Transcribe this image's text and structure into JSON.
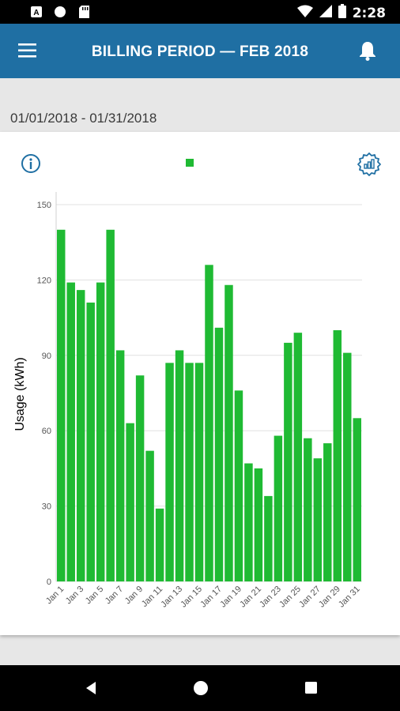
{
  "status_bar": {
    "time": "2:28",
    "icons": [
      "a-notification-icon",
      "circle-notification-icon",
      "sd-card-icon",
      "wifi-icon",
      "signal-icon",
      "battery-icon"
    ]
  },
  "app_bar": {
    "title": "BILLING PERIOD  —  FEB 2018",
    "icons": [
      "hamburger-menu-icon",
      "bell-icon"
    ]
  },
  "date_range": "01/01/2018 - 01/31/2018",
  "card": {
    "icons": [
      "info-icon",
      "chart-settings-icon"
    ]
  },
  "colors": {
    "app_bar": "#1f6fa3",
    "bar": "#1fba33",
    "accent_icon": "#1f6fa3"
  },
  "chart_data": {
    "type": "bar",
    "ylabel": "Usage (kWh)",
    "xlabel": "",
    "ylim": [
      0,
      150
    ],
    "yticks": [
      0,
      30,
      60,
      90,
      120,
      150
    ],
    "grid": true,
    "legend": "top-center",
    "categories": [
      "Jan 1",
      "Jan 2",
      "Jan 3",
      "Jan 4",
      "Jan 5",
      "Jan 6",
      "Jan 7",
      "Jan 8",
      "Jan 9",
      "Jan 10",
      "Jan 11",
      "Jan 12",
      "Jan 13",
      "Jan 14",
      "Jan 15",
      "Jan 16",
      "Jan 17",
      "Jan 18",
      "Jan 19",
      "Jan 20",
      "Jan 21",
      "Jan 22",
      "Jan 23",
      "Jan 24",
      "Jan 25",
      "Jan 26",
      "Jan 27",
      "Jan 28",
      "Jan 29",
      "Jan 30",
      "Jan 31"
    ],
    "tick_labels": [
      "Jan 1",
      "Jan 3",
      "Jan 5",
      "Jan 7",
      "Jan 9",
      "Jan 11",
      "Jan 13",
      "Jan 15",
      "Jan 17",
      "Jan 19",
      "Jan 21",
      "Jan 23",
      "Jan 25",
      "Jan 27",
      "Jan 29",
      "Jan 31"
    ],
    "values": [
      140,
      119,
      116,
      111,
      119,
      140,
      92,
      63,
      82,
      52,
      29,
      87,
      92,
      87,
      87,
      126,
      101,
      118,
      76,
      47,
      45,
      34,
      58,
      95,
      99,
      57,
      49,
      55,
      100,
      91,
      65
    ]
  },
  "nav_bar": {
    "icons": [
      "back-icon",
      "home-icon",
      "recents-icon"
    ]
  }
}
